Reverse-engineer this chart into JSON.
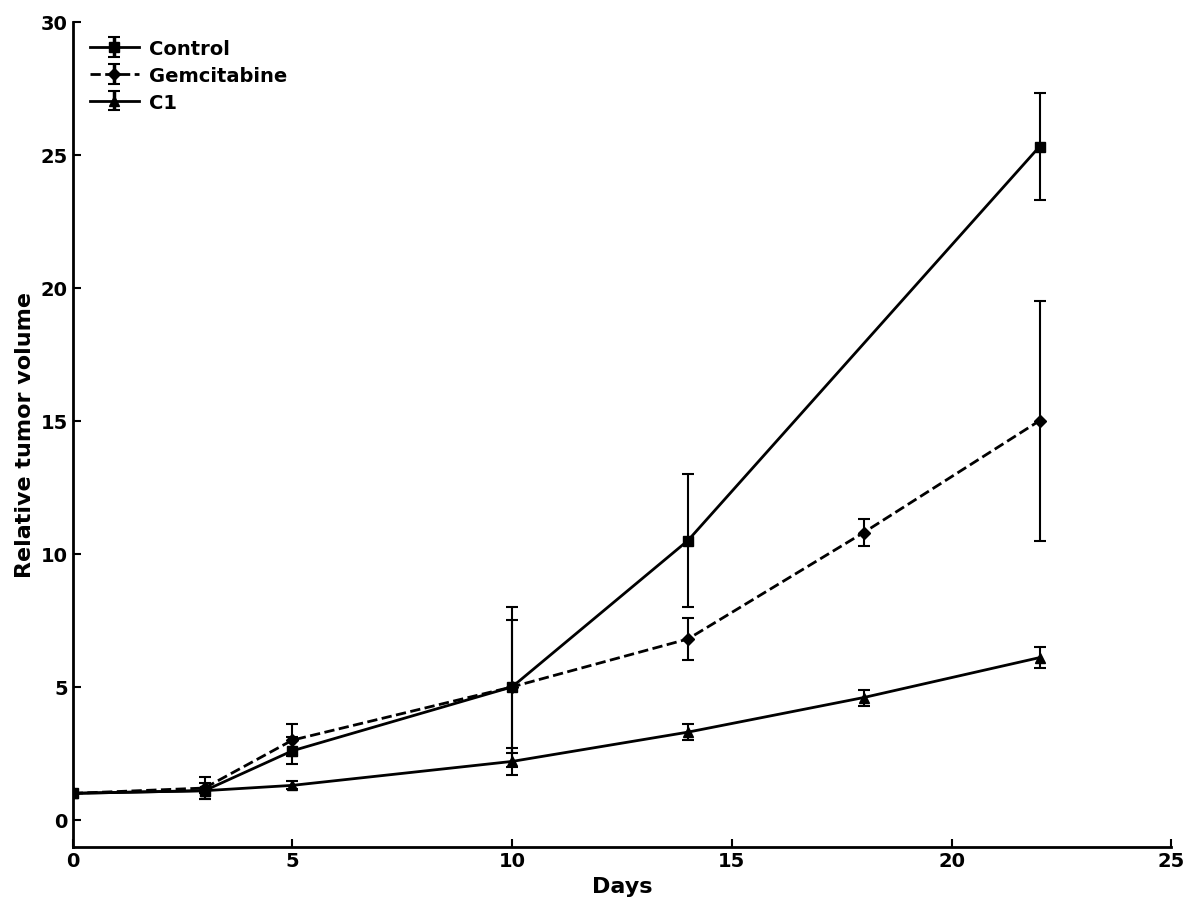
{
  "title": "",
  "xlabel": "Days",
  "ylabel": "Relative tumor volume",
  "xlim": [
    0,
    25
  ],
  "ylim": [
    -1,
    30
  ],
  "xticks": [
    0,
    5,
    10,
    15,
    20,
    25
  ],
  "yticks": [
    0,
    5,
    10,
    15,
    20,
    25,
    30
  ],
  "series": [
    {
      "label": "Control",
      "x": [
        0,
        3,
        5,
        10,
        14,
        22
      ],
      "y": [
        1.0,
        1.1,
        2.6,
        5.0,
        10.5,
        25.3
      ],
      "yerr": [
        0.1,
        0.3,
        0.5,
        2.5,
        2.5,
        2.0
      ],
      "color": "#000000",
      "linewidth": 2.0,
      "marker": "s",
      "markersize": 7,
      "linestyle": "-"
    },
    {
      "label": "Gemcitabine",
      "x": [
        0,
        3,
        5,
        10,
        14,
        18,
        22
      ],
      "y": [
        1.0,
        1.2,
        3.0,
        5.0,
        6.8,
        10.8,
        15.0
      ],
      "yerr": [
        0.1,
        0.4,
        0.6,
        3.0,
        0.8,
        0.5,
        4.5
      ],
      "color": "#000000",
      "linewidth": 2.0,
      "marker": "D",
      "markersize": 6,
      "linestyle": "--"
    },
    {
      "label": "C1",
      "x": [
        0,
        3,
        5,
        10,
        14,
        18,
        22
      ],
      "y": [
        1.0,
        1.1,
        1.3,
        2.2,
        3.3,
        4.6,
        6.1
      ],
      "yerr": [
        0.05,
        0.1,
        0.15,
        0.5,
        0.3,
        0.3,
        0.4
      ],
      "color": "#000000",
      "linewidth": 2.0,
      "marker": "^",
      "markersize": 7,
      "linestyle": "-"
    }
  ],
  "background_color": "#ffffff",
  "legend_loc": "upper left",
  "legend_fontsize": 14,
  "axis_fontsize": 16,
  "tick_fontsize": 14
}
